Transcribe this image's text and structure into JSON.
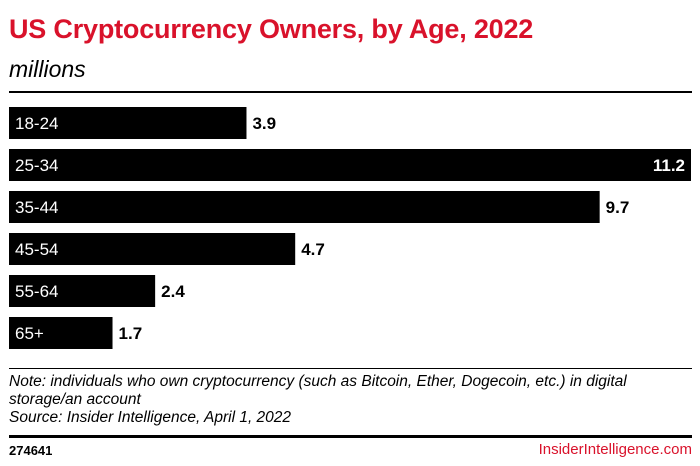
{
  "chart_data": {
    "type": "bar",
    "orientation": "horizontal",
    "title": "US Cryptocurrency Owners, by Age, 2022",
    "subtitle": "millions",
    "categories": [
      "18-24",
      "25-34",
      "35-44",
      "45-54",
      "55-64",
      "65+"
    ],
    "values": [
      3.9,
      11.2,
      9.7,
      4.7,
      2.4,
      1.7
    ],
    "value_labels": [
      "3.9",
      "11.2",
      "9.7",
      "4.7",
      "2.4",
      "1.7"
    ],
    "xlim": [
      0,
      11.2
    ],
    "xlabel": "",
    "ylabel": "",
    "grid": false,
    "legend": "none",
    "bar_color": "#000000"
  },
  "note": {
    "line1": "Note: individuals who own cryptocurrency (such as Bitcoin, Ether, Dogecoin, etc.) in digital",
    "line2": "storage/an account",
    "source": "Source: Insider Intelligence, April 1, 2022"
  },
  "footer": {
    "chart_id": "274641",
    "brand": "InsiderIntelligence.com"
  },
  "colors": {
    "accent": "#d9122b",
    "bar": "#000000",
    "bar_label_text": "#ffffff"
  }
}
